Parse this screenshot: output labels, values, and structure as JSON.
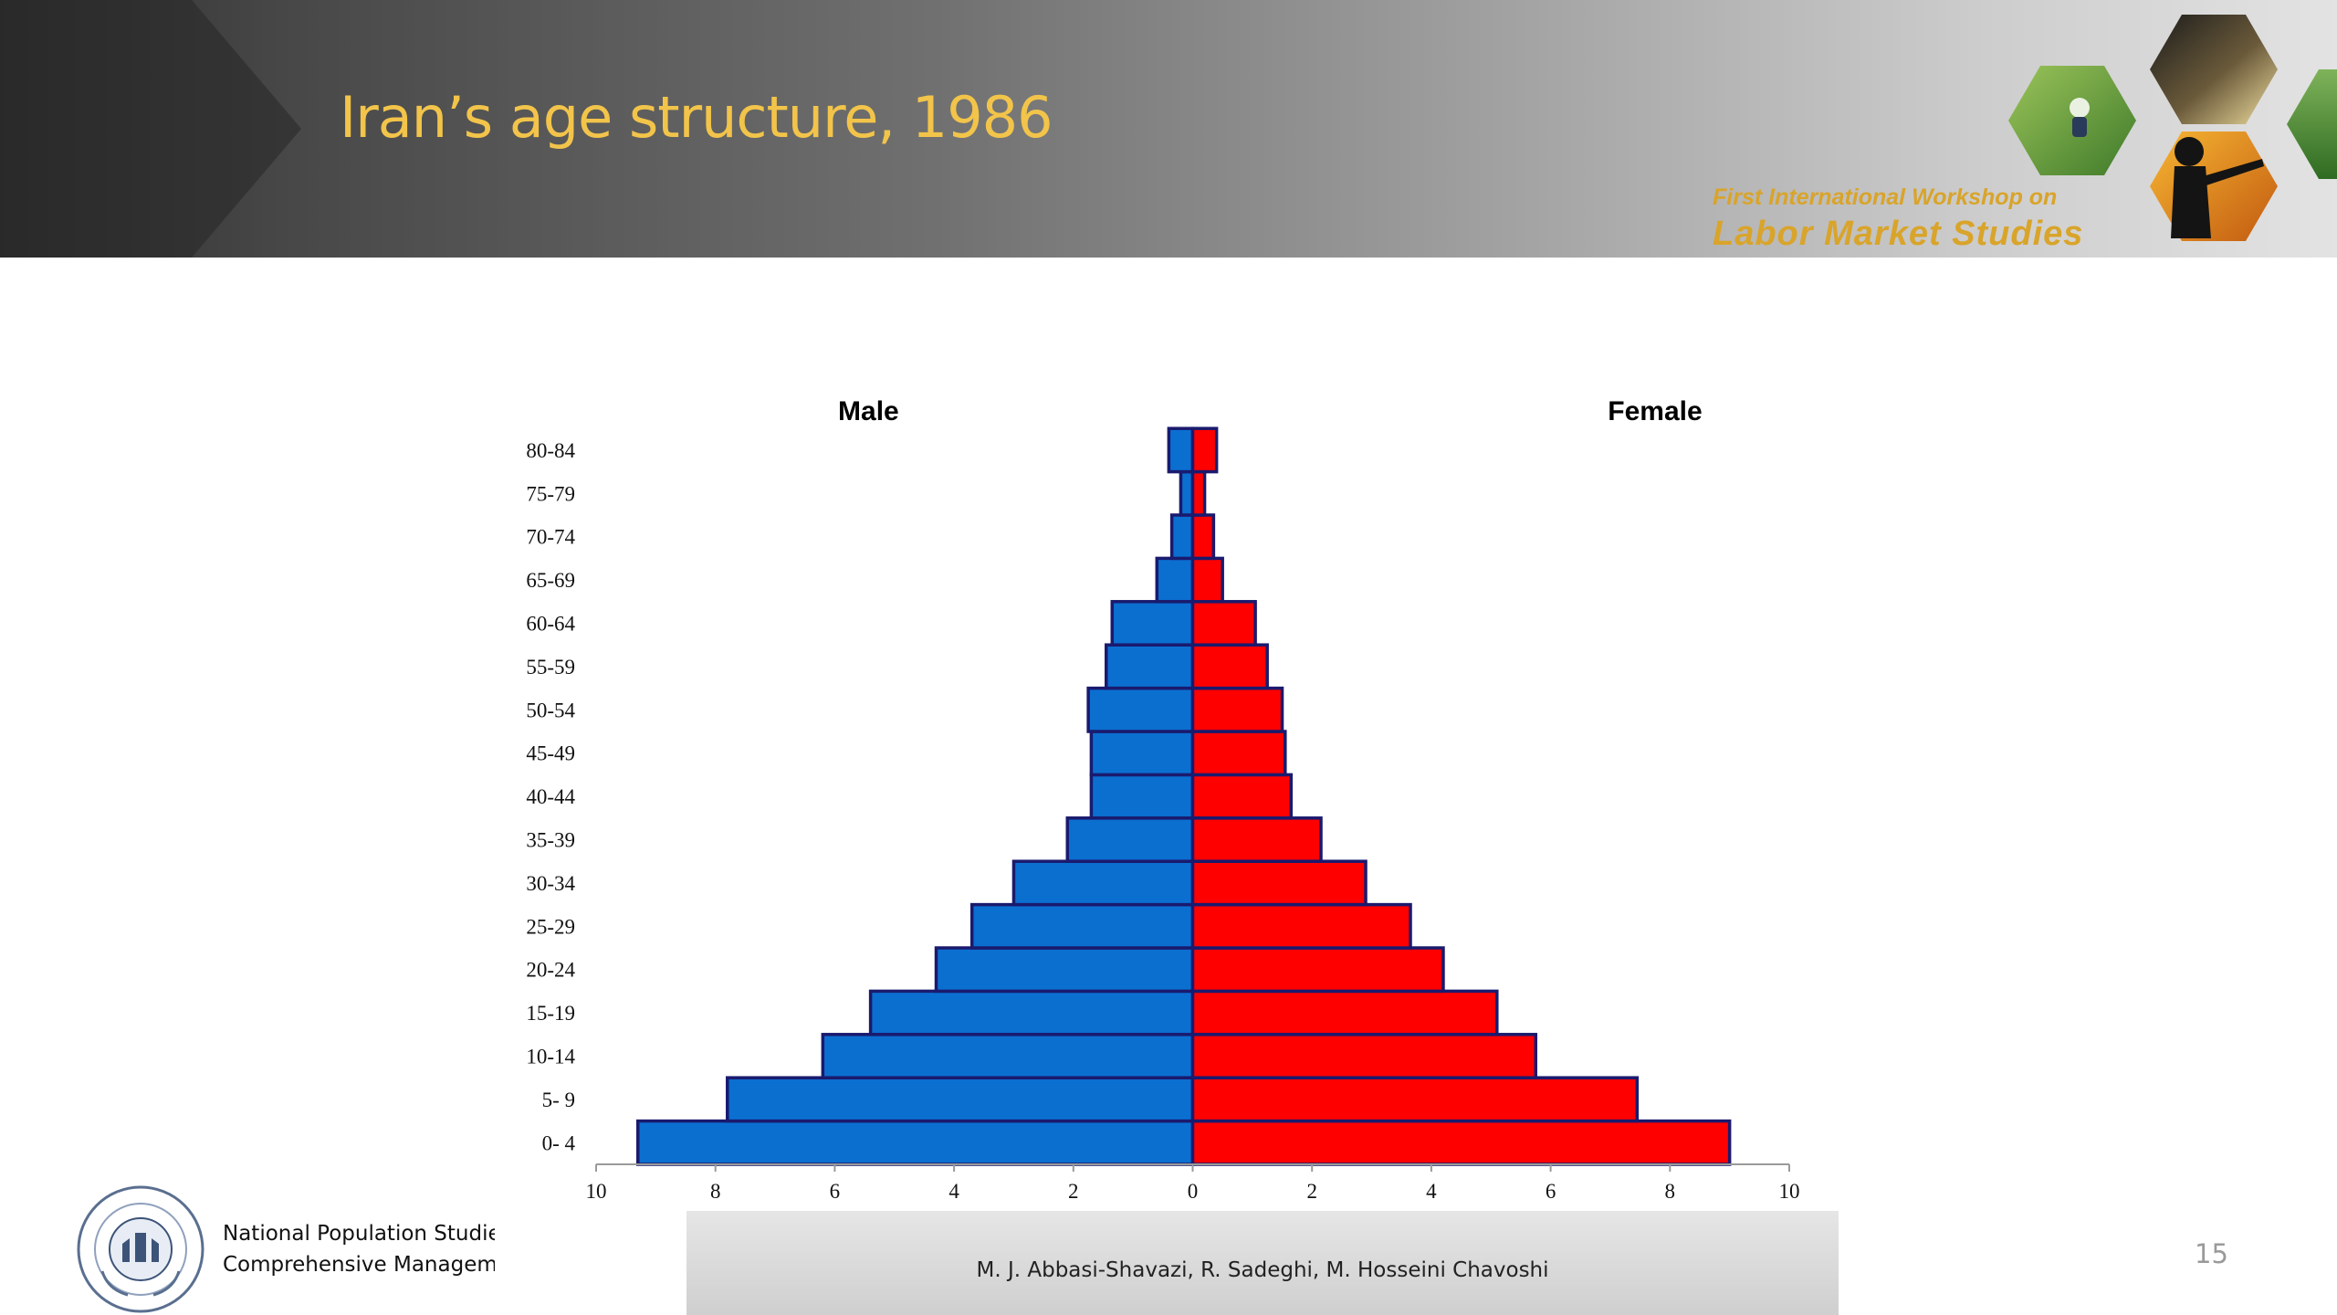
{
  "slide": {
    "title": "Iran’s age structure, 1986",
    "page_number": "15"
  },
  "workshop": {
    "line1": "First International Workshop on",
    "line2": "Labor Market Studies"
  },
  "footer": {
    "authors": "M. J. Abbasi-Shavazi, R. Sadeghi, M. Hosseini Chavoshi",
    "org_line1": "National Population Studies",
    "org_line2": "Comprehensive Management"
  },
  "colors": {
    "male": "#0b6fd0",
    "female": "#ff0000",
    "bar_border": "#1a1a6e",
    "title": "#f2c44a"
  },
  "chart_data": {
    "type": "bar",
    "orientation": "horizontal",
    "subtype": "population-pyramid",
    "categories": [
      "0- 4",
      "5- 9",
      "10-14",
      "15-19",
      "20-24",
      "25-29",
      "30-34",
      "35-39",
      "40-44",
      "45-49",
      "50-54",
      "55-59",
      "60-64",
      "65-69",
      "70-74",
      "75-79",
      "80-84"
    ],
    "series": [
      {
        "name": "Male",
        "side": "left",
        "values": [
          9.3,
          7.8,
          6.2,
          5.4,
          4.3,
          3.7,
          3.0,
          2.1,
          1.7,
          1.7,
          1.75,
          1.45,
          1.35,
          0.6,
          0.35,
          0.2,
          0.4
        ]
      },
      {
        "name": "Female",
        "side": "right",
        "values": [
          9.0,
          7.45,
          5.75,
          5.1,
          4.2,
          3.65,
          2.9,
          2.15,
          1.65,
          1.55,
          1.5,
          1.25,
          1.05,
          0.5,
          0.35,
          0.2,
          0.4
        ]
      }
    ],
    "x_ticks": [
      "10",
      "8",
      "6",
      "4",
      "2",
      "0",
      "2",
      "4",
      "6",
      "8",
      "10"
    ],
    "xlim": [
      -10,
      10
    ],
    "xlabel": "",
    "ylabel": "",
    "grid": false,
    "legend": "side headers"
  }
}
